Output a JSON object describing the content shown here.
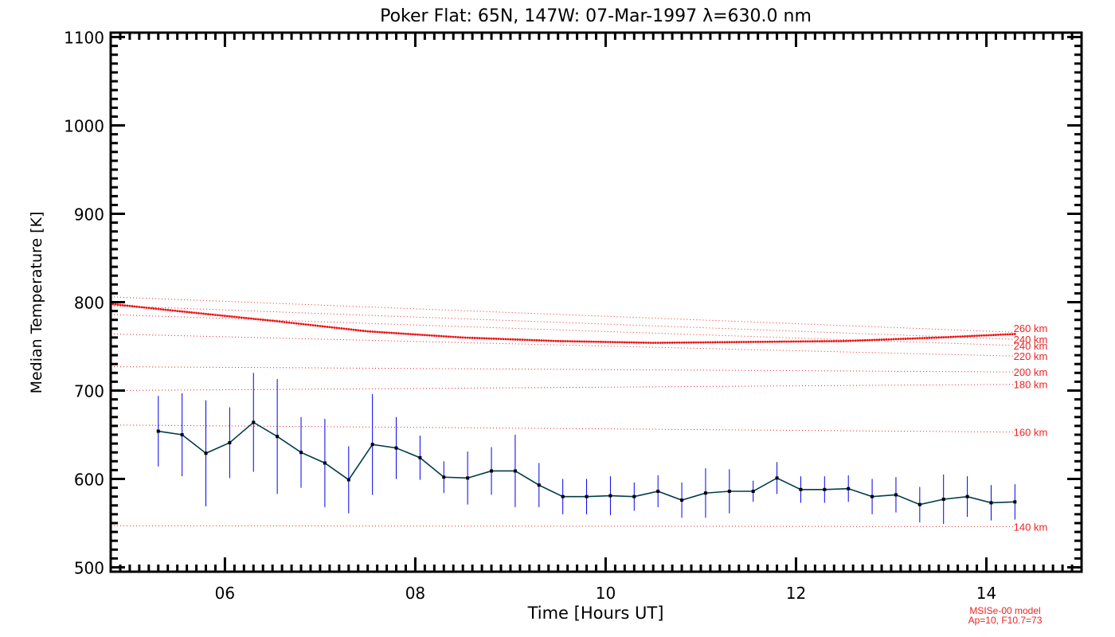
{
  "chart_data": {
    "type": "line",
    "title": "Poker Flat: 65N, 147W: 07-Mar-1997 λ=630.0 nm",
    "xlabel": "Time [Hours UT]",
    "ylabel": "Median Temperature [K]",
    "xlim": [
      4.8,
      15.0
    ],
    "ylim": [
      495,
      1105
    ],
    "xticks": [
      6,
      8,
      10,
      12,
      14
    ],
    "xticklabels": [
      "06",
      "08",
      "10",
      "12",
      "14"
    ],
    "yticks": [
      500,
      600,
      700,
      800,
      900,
      1000,
      1100
    ],
    "yticklabels": [
      "500",
      "600",
      "700",
      "800",
      "900",
      "1000",
      "1100"
    ],
    "grid": false,
    "series": [
      {
        "kind": "measured",
        "color": "#003c4c",
        "errorbar_color": "#0000ee",
        "x": [
          5.3,
          5.55,
          5.8,
          6.05,
          6.3,
          6.55,
          6.8,
          7.05,
          7.3,
          7.55,
          7.8,
          8.05,
          8.3,
          8.55,
          8.8,
          9.05,
          9.3,
          9.55,
          9.8,
          10.05,
          10.3,
          10.55,
          10.8,
          11.05,
          11.3,
          11.55,
          11.8,
          12.05,
          12.3,
          12.55,
          12.8,
          13.05,
          13.3,
          13.55,
          13.8,
          14.05,
          14.3
        ],
        "y": [
          654,
          650,
          629,
          641,
          664,
          648,
          630,
          618,
          599,
          639,
          635,
          624,
          602,
          601,
          609,
          609,
          593,
          580,
          580,
          581,
          580,
          586,
          576,
          584,
          586,
          586,
          601,
          588,
          588,
          589,
          580,
          582,
          571,
          577,
          580,
          573,
          574
        ],
        "err": [
          40,
          47,
          60,
          40,
          56,
          65,
          40,
          50,
          38,
          57,
          35,
          25,
          18,
          30,
          27,
          41,
          25,
          20,
          20,
          22,
          16,
          18,
          20,
          28,
          25,
          12,
          18,
          15,
          15,
          15,
          20,
          20,
          20,
          28,
          23,
          20,
          20
        ]
      },
      {
        "kind": "model-heavy",
        "color": "#ee1111",
        "x": [
          4.8,
          5.5,
          6.5,
          7.5,
          8.5,
          9.5,
          10.5,
          11.5,
          12.5,
          13.5,
          14.3
        ],
        "y": [
          798,
          790,
          779,
          767,
          760,
          756,
          754,
          755,
          756,
          760,
          764
        ]
      }
    ],
    "model_curves": [
      {
        "label": "260 km",
        "x": [
          4.8,
          14.3
        ],
        "y": [
          806,
          766
        ]
      },
      {
        "label": "240 km",
        "x": [
          4.8,
          14.3
        ],
        "y": [
          796,
          758
        ]
      },
      {
        "label": "240 km",
        "x": [
          4.8,
          14.3
        ],
        "y": [
          786,
          751
        ]
      },
      {
        "label": "220 km",
        "x": [
          4.8,
          14.3
        ],
        "y": [
          764,
          739
        ]
      },
      {
        "label": "200 km",
        "x": [
          4.8,
          14.3
        ],
        "y": [
          727,
          721
        ]
      },
      {
        "label": "180 km",
        "x": [
          4.8,
          14.3
        ],
        "y": [
          700,
          707
        ]
      },
      {
        "label": "160 km",
        "x": [
          4.8,
          14.3
        ],
        "y": [
          661,
          653
        ]
      },
      {
        "label": "140 km",
        "x": [
          4.8,
          14.3
        ],
        "y": [
          547,
          546
        ]
      }
    ],
    "annotations": [
      "MSISe-00 model",
      "Ap=10, F10.7=73"
    ],
    "annotation_color": "#ee2222"
  }
}
